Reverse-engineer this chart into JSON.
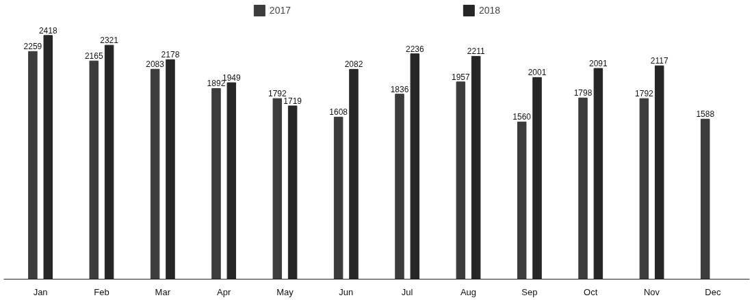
{
  "chart_data": {
    "type": "bar",
    "categories": [
      "Jan",
      "Feb",
      "Mar",
      "Apr",
      "May",
      "Jun",
      "Jul",
      "Aug",
      "Sep",
      "Oct",
      "Nov",
      "Dec"
    ],
    "series": [
      {
        "name": "2017",
        "color": "#3c3c3c",
        "values": [
          2259,
          2165,
          2083,
          1892,
          1792,
          1608,
          1836,
          1957,
          1560,
          1798,
          1792,
          1588
        ]
      },
      {
        "name": "2018",
        "color": "#262626",
        "values": [
          2418,
          2321,
          2178,
          1949,
          1719,
          2082,
          2236,
          2211,
          2001,
          2091,
          2117,
          null
        ]
      }
    ],
    "data_labels": true,
    "legend": "top",
    "grid": false
  }
}
